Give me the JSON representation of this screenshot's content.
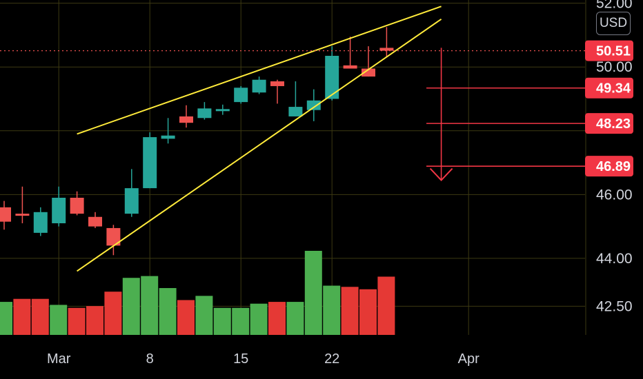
{
  "chart_data": {
    "type": "candlestick",
    "currency": "USD",
    "price_axis": {
      "ticks": [
        "52.00",
        "50.00",
        "46.00",
        "44.00",
        "42.50"
      ],
      "range": [
        41.6,
        52.1
      ]
    },
    "time_axis": {
      "ticks": [
        "Mar",
        "8",
        "15",
        "22",
        "Apr"
      ],
      "range_bars": [
        -0.8,
        32.7
      ]
    },
    "colors": {
      "up": "#26a69a",
      "down": "#ef5350",
      "volume_up": "#4caf50",
      "volume_down": "#e53935",
      "trendline": "#ffeb3b",
      "target": "#f23645",
      "grid": "#3d3a12"
    },
    "candles": [
      {
        "o": 45.6,
        "h": 45.8,
        "l": 44.9,
        "c": 45.15
      },
      {
        "o": 45.4,
        "h": 46.25,
        "l": 45.1,
        "c": 45.35
      },
      {
        "o": 44.8,
        "h": 45.6,
        "l": 44.7,
        "c": 45.45
      },
      {
        "o": 45.1,
        "h": 46.25,
        "l": 45.0,
        "c": 45.9
      },
      {
        "o": 45.9,
        "h": 46.1,
        "l": 45.35,
        "c": 45.4
      },
      {
        "o": 45.3,
        "h": 45.45,
        "l": 44.95,
        "c": 45.0
      },
      {
        "o": 44.95,
        "h": 45.05,
        "l": 44.1,
        "c": 44.4
      },
      {
        "o": 45.4,
        "h": 46.8,
        "l": 45.3,
        "c": 46.2
      },
      {
        "o": 46.2,
        "h": 47.95,
        "l": 46.2,
        "c": 47.8
      },
      {
        "o": 47.75,
        "h": 48.4,
        "l": 47.6,
        "c": 47.85
      },
      {
        "o": 48.45,
        "h": 48.8,
        "l": 48.1,
        "c": 48.25
      },
      {
        "o": 48.4,
        "h": 48.9,
        "l": 48.35,
        "c": 48.7
      },
      {
        "o": 48.65,
        "h": 48.82,
        "l": 48.5,
        "c": 48.68
      },
      {
        "o": 48.9,
        "h": 49.4,
        "l": 48.85,
        "c": 49.35
      },
      {
        "o": 49.2,
        "h": 49.7,
        "l": 49.15,
        "c": 49.6
      },
      {
        "o": 49.55,
        "h": 49.6,
        "l": 48.85,
        "c": 49.4
      },
      {
        "o": 48.45,
        "h": 49.55,
        "l": 48.45,
        "c": 48.75
      },
      {
        "o": 48.65,
        "h": 49.3,
        "l": 48.3,
        "c": 48.95
      },
      {
        "o": 49.0,
        "h": 50.65,
        "l": 48.95,
        "c": 50.35
      },
      {
        "o": 50.05,
        "h": 50.95,
        "l": 49.95,
        "c": 49.95
      },
      {
        "o": 49.95,
        "h": 50.65,
        "l": 49.7,
        "c": 49.7
      },
      {
        "o": 50.6,
        "h": 51.25,
        "l": 50.3,
        "c": 50.51
      }
    ],
    "volume": [
      {
        "v": 0.55,
        "dir": "up"
      },
      {
        "v": 0.6,
        "dir": "down"
      },
      {
        "v": 0.6,
        "dir": "down"
      },
      {
        "v": 0.5,
        "dir": "up"
      },
      {
        "v": 0.45,
        "dir": "down"
      },
      {
        "v": 0.48,
        "dir": "down"
      },
      {
        "v": 0.72,
        "dir": "down"
      },
      {
        "v": 0.95,
        "dir": "up"
      },
      {
        "v": 0.98,
        "dir": "up"
      },
      {
        "v": 0.78,
        "dir": "up"
      },
      {
        "v": 0.58,
        "dir": "down"
      },
      {
        "v": 0.65,
        "dir": "up"
      },
      {
        "v": 0.45,
        "dir": "up"
      },
      {
        "v": 0.45,
        "dir": "up"
      },
      {
        "v": 0.52,
        "dir": "up"
      },
      {
        "v": 0.55,
        "dir": "down"
      },
      {
        "v": 0.55,
        "dir": "up"
      },
      {
        "v": 1.4,
        "dir": "up"
      },
      {
        "v": 0.82,
        "dir": "up"
      },
      {
        "v": 0.8,
        "dir": "down"
      },
      {
        "v": 0.76,
        "dir": "down"
      },
      {
        "v": 0.97,
        "dir": "down"
      }
    ],
    "trendlines": [
      {
        "name": "upper",
        "from": {
          "bar": 4.0,
          "price": 47.9
        },
        "to": {
          "bar": 24.0,
          "price": 51.9
        }
      },
      {
        "name": "lower",
        "from": {
          "bar": 4.0,
          "price": 43.6
        },
        "to": {
          "bar": 24.0,
          "price": 51.5
        }
      }
    ],
    "current_price": "50.51",
    "targets": [
      "49.34",
      "48.23",
      "46.89"
    ],
    "projection": {
      "bar": 24.0,
      "from": 50.6,
      "to": 46.45
    }
  }
}
